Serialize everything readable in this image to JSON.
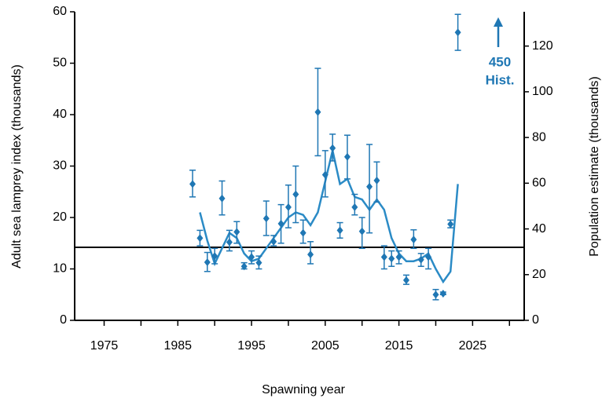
{
  "chart_data": {
    "type": "scatter",
    "x_label": "Spawning year",
    "y_label": "Adult sea lamprey index  (thousands)",
    "y2_label": "Population estimate  (thousands)",
    "annotation": [
      "450",
      "Hist."
    ],
    "xlim": [
      1971,
      2032
    ],
    "xticks": [
      1975,
      1985,
      1995,
      2005,
      2015,
      2025
    ],
    "xminorticks": [
      1980,
      1990,
      2000,
      2010,
      2020,
      2030
    ],
    "ylim": [
      0,
      60
    ],
    "yticks": [
      0,
      10,
      20,
      30,
      40,
      50,
      60
    ],
    "y2lim": [
      0,
      135
    ],
    "y2ticks": [
      0,
      20,
      40,
      60,
      80,
      100,
      120
    ],
    "reference_line": 14.2,
    "points": {
      "color": "#1f77b4",
      "x": [
        1987,
        1988,
        1989,
        1990,
        1991,
        1992,
        1993,
        1994,
        1995,
        1996,
        1997,
        1998,
        1999,
        2000,
        2001,
        2002,
        2003,
        2004,
        2005,
        2006,
        2007,
        2008,
        2009,
        2010,
        2011,
        2012,
        2013,
        2014,
        2015,
        2016,
        2017,
        2018,
        2019,
        2020,
        2021,
        2022,
        2023
      ],
      "values": [
        26.5,
        16,
        11.3,
        12.5,
        23.7,
        15.2,
        17.2,
        10.5,
        12.3,
        11.2,
        19.8,
        15.3,
        18.8,
        22,
        24.5,
        17,
        12.8,
        40.5,
        28.3,
        33.5,
        17.5,
        31.8,
        22,
        17.3,
        26,
        27.2,
        12.3,
        12,
        12.3,
        7.8,
        15.7,
        11.8,
        12.3,
        5,
        5.2,
        18.7,
        56
      ],
      "lower": [
        24,
        14.5,
        9.5,
        11,
        20.5,
        13.5,
        15,
        10,
        11,
        10,
        16.5,
        14.5,
        15,
        18,
        19,
        15,
        11,
        32,
        24,
        31,
        16,
        27.5,
        20.5,
        14,
        17,
        23,
        10,
        10.5,
        11,
        7,
        14,
        10.5,
        10,
        4,
        5,
        18,
        52.5
      ],
      "upper": [
        29.2,
        17.5,
        13.2,
        14,
        27.1,
        17.5,
        19.2,
        11.2,
        13.5,
        12.5,
        23.2,
        16.5,
        22.5,
        26.3,
        30,
        19.5,
        15.3,
        49,
        33,
        36.2,
        19,
        36,
        24.5,
        20,
        34.2,
        30.8,
        14.5,
        13.5,
        13.5,
        8.8,
        17.6,
        13,
        14,
        6,
        5.5,
        19.5,
        59.5
      ]
    },
    "line": {
      "color": "#2b8bc6",
      "x": [
        1988,
        1989,
        1990,
        1991,
        1992,
        1993,
        1994,
        1995,
        1996,
        1997,
        1998,
        1999,
        2000,
        2001,
        2002,
        2003,
        2004,
        2005,
        2006,
        2007,
        2008,
        2009,
        2010,
        2011,
        2012,
        2013,
        2014,
        2015,
        2016,
        2017,
        2018,
        2019,
        2020,
        2021,
        2022,
        2023
      ],
      "values": [
        21,
        15.5,
        11,
        14,
        17,
        16,
        13,
        11.5,
        12,
        14,
        16,
        18,
        20,
        21,
        20.5,
        18.5,
        21,
        27,
        33,
        26.5,
        27.5,
        24,
        23.5,
        21.5,
        23.5,
        21.5,
        16,
        13,
        11.5,
        11.5,
        12,
        13,
        10,
        7.5,
        9.5,
        26.5
      ]
    }
  }
}
